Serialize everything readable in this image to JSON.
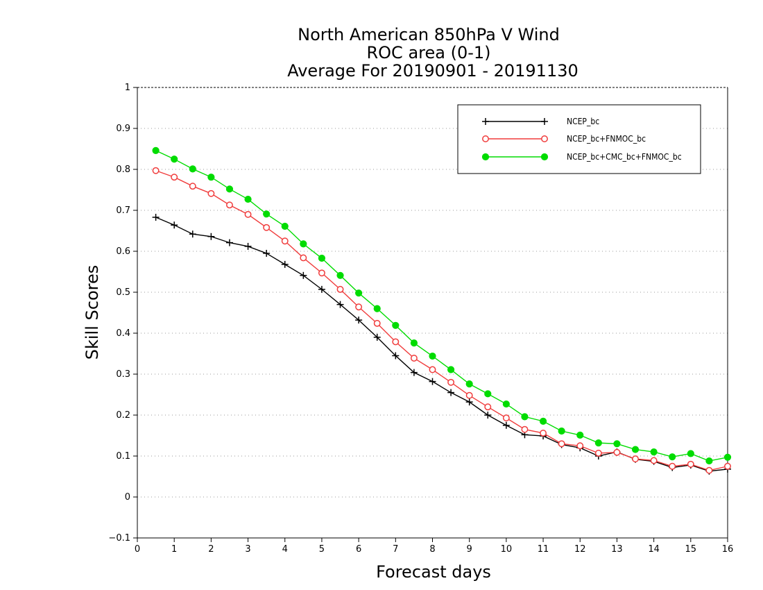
{
  "chart_data": {
    "type": "line",
    "title_lines": [
      "North American 850hPa V Wind",
      "ROC area (0-1)",
      "Average For 20190901 - 20191130"
    ],
    "xlabel": "Forecast days",
    "ylabel": "Skill Scores",
    "xlim": [
      0,
      16
    ],
    "ylim": [
      -0.1,
      1
    ],
    "x_ticks": [
      "0",
      "1",
      "2",
      "3",
      "4",
      "5",
      "6",
      "7",
      "8",
      "9",
      "10",
      "11",
      "12",
      "13",
      "14",
      "15",
      "16"
    ],
    "y_ticks": [
      "-0.1",
      "0",
      "0.1",
      "0.2",
      "0.3",
      "0.4",
      "0.5",
      "0.6",
      "0.7",
      "0.8",
      "0.9",
      "1"
    ],
    "grid": true,
    "legend_position": "top-right",
    "x": [
      0.5,
      1,
      1.5,
      2,
      2.5,
      3,
      3.5,
      4,
      4.5,
      5,
      5.5,
      6,
      6.5,
      7,
      7.5,
      8,
      8.5,
      9,
      9.5,
      10,
      10.5,
      11,
      11.5,
      12,
      12.5,
      13,
      13.5,
      14,
      14.5,
      15,
      15.5,
      16
    ],
    "series": [
      {
        "name": "NCEP_bc",
        "color": "#000000",
        "marker": "plus",
        "values": [
          0.683,
          0.664,
          0.642,
          0.636,
          0.621,
          0.612,
          0.595,
          0.568,
          0.541,
          0.507,
          0.47,
          0.432,
          0.39,
          0.345,
          0.304,
          0.282,
          0.255,
          0.232,
          0.2,
          0.175,
          0.152,
          0.149,
          0.128,
          0.12,
          0.1,
          0.11,
          0.092,
          0.087,
          0.072,
          0.078,
          0.063,
          0.068
        ]
      },
      {
        "name": "NCEP_bc+FNMOC_bc",
        "color": "#f03c3c",
        "marker": "open-circle",
        "values": [
          0.797,
          0.781,
          0.759,
          0.741,
          0.713,
          0.69,
          0.658,
          0.625,
          0.584,
          0.547,
          0.507,
          0.464,
          0.424,
          0.379,
          0.339,
          0.311,
          0.28,
          0.248,
          0.22,
          0.193,
          0.165,
          0.156,
          0.13,
          0.125,
          0.107,
          0.109,
          0.093,
          0.089,
          0.075,
          0.08,
          0.065,
          0.075
        ]
      },
      {
        "name": "NCEP_bc+CMC_bc+FNMOC_bc",
        "color": "#00dc00",
        "marker": "filled-circle",
        "values": [
          0.846,
          0.825,
          0.801,
          0.781,
          0.752,
          0.727,
          0.691,
          0.661,
          0.618,
          0.583,
          0.541,
          0.498,
          0.46,
          0.419,
          0.376,
          0.344,
          0.311,
          0.276,
          0.252,
          0.227,
          0.196,
          0.185,
          0.161,
          0.151,
          0.132,
          0.13,
          0.116,
          0.11,
          0.098,
          0.106,
          0.088,
          0.097
        ]
      }
    ]
  }
}
